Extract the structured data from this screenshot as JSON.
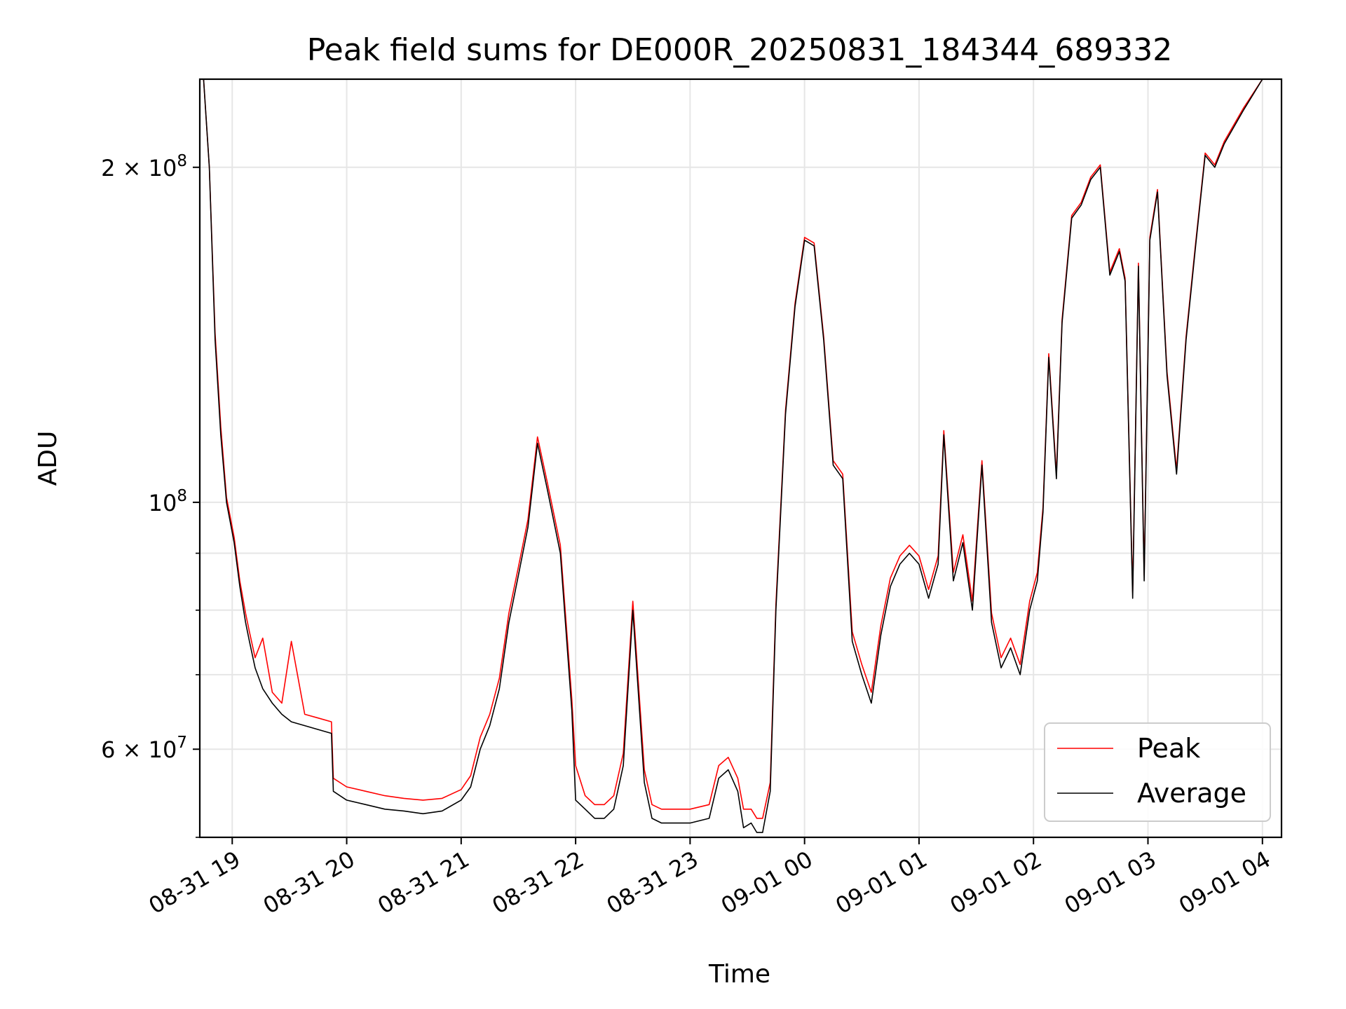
{
  "chart_data": {
    "type": "line",
    "title": "Peak field sums for DE000R_20250831_184344_689332",
    "xlabel": "Time",
    "ylabel": "ADU",
    "y_scale": "log",
    "grid": true,
    "legend_position": "lower-right",
    "x_tick_labels": [
      "08-31 19",
      "08-31 20",
      "08-31 21",
      "08-31 22",
      "08-31 23",
      "09-01 00",
      "09-01 01",
      "09-01 02",
      "09-01 03",
      "09-01 04"
    ],
    "x_ticks": [
      "2025-08-31 19:00",
      "2025-08-31 20:00",
      "2025-08-31 21:00",
      "2025-08-31 22:00",
      "2025-08-31 23:00",
      "2025-09-01 00:00",
      "2025-09-01 01:00",
      "2025-09-01 02:00",
      "2025-09-01 03:00",
      "2025-09-01 04:00"
    ],
    "x_range": [
      "2025-08-31 18:43",
      "2025-09-01 04:10"
    ],
    "y_range": [
      50000000,
      240000000
    ],
    "y_major_ticks": [
      {
        "value": 60000000,
        "mantissa": "6",
        "exponent": "7"
      },
      {
        "value": 100000000,
        "mantissa": "",
        "exponent": "8"
      },
      {
        "value": 200000000,
        "mantissa": "2",
        "exponent": "8"
      }
    ],
    "y_minor_ticks": [
      50000000,
      70000000,
      80000000,
      90000000,
      300000000
    ],
    "series": [
      {
        "name": "Peak",
        "color": "#ff0000"
      },
      {
        "name": "Average",
        "color": "#000000"
      }
    ],
    "x": [
      "2025-08-31 18:45",
      "2025-08-31 18:48",
      "2025-08-31 18:51",
      "2025-08-31 18:54",
      "2025-08-31 18:57",
      "2025-08-31 19:01",
      "2025-08-31 19:04",
      "2025-08-31 19:07",
      "2025-08-31 19:09",
      "2025-08-31 19:12",
      "2025-08-31 19:16",
      "2025-08-31 19:21",
      "2025-08-31 19:26",
      "2025-08-31 19:31",
      "2025-08-31 19:38",
      "2025-08-31 19:45",
      "2025-08-31 19:52",
      "2025-08-31 19:53",
      "2025-08-31 20:00",
      "2025-08-31 20:10",
      "2025-08-31 20:20",
      "2025-08-31 20:30",
      "2025-08-31 20:40",
      "2025-08-31 20:50",
      "2025-08-31 21:00",
      "2025-08-31 21:05",
      "2025-08-31 21:10",
      "2025-08-31 21:15",
      "2025-08-31 21:20",
      "2025-08-31 21:25",
      "2025-08-31 21:30",
      "2025-08-31 21:35",
      "2025-08-31 21:40",
      "2025-08-31 21:45",
      "2025-08-31 21:52",
      "2025-08-31 21:58",
      "2025-08-31 22:00",
      "2025-08-31 22:05",
      "2025-08-31 22:10",
      "2025-08-31 22:15",
      "2025-08-31 22:20",
      "2025-08-31 22:25",
      "2025-08-31 22:30",
      "2025-08-31 22:36",
      "2025-08-31 22:40",
      "2025-08-31 22:45",
      "2025-08-31 22:50",
      "2025-08-31 23:00",
      "2025-08-31 23:10",
      "2025-08-31 23:15",
      "2025-08-31 23:20",
      "2025-08-31 23:25",
      "2025-08-31 23:28",
      "2025-08-31 23:32",
      "2025-08-31 23:35",
      "2025-08-31 23:38",
      "2025-08-31 23:42",
      "2025-08-31 23:45",
      "2025-08-31 23:50",
      "2025-08-31 23:55",
      "2025-09-01 00:00",
      "2025-09-01 00:05",
      "2025-09-01 00:10",
      "2025-09-01 00:15",
      "2025-09-01 00:20",
      "2025-09-01 00:25",
      "2025-09-01 00:30",
      "2025-09-01 00:35",
      "2025-09-01 00:40",
      "2025-09-01 00:45",
      "2025-09-01 00:50",
      "2025-09-01 00:55",
      "2025-09-01 01:00",
      "2025-09-01 01:05",
      "2025-09-01 01:10",
      "2025-09-01 01:13",
      "2025-09-01 01:18",
      "2025-09-01 01:23",
      "2025-09-01 01:28",
      "2025-09-01 01:33",
      "2025-09-01 01:38",
      "2025-09-01 01:43",
      "2025-09-01 01:48",
      "2025-09-01 01:53",
      "2025-09-01 01:58",
      "2025-09-01 02:02",
      "2025-09-01 02:05",
      "2025-09-01 02:08",
      "2025-09-01 02:12",
      "2025-09-01 02:15",
      "2025-09-01 02:20",
      "2025-09-01 02:25",
      "2025-09-01 02:30",
      "2025-09-01 02:35",
      "2025-09-01 02:40",
      "2025-09-01 02:45",
      "2025-09-01 02:48",
      "2025-09-01 02:52",
      "2025-09-01 02:55",
      "2025-09-01 02:58",
      "2025-09-01 03:01",
      "2025-09-01 03:05",
      "2025-09-01 03:10",
      "2025-09-01 03:15",
      "2025-09-01 03:20",
      "2025-09-01 03:25",
      "2025-09-01 03:30",
      "2025-09-01 03:35",
      "2025-09-01 03:40",
      "2025-09-01 03:50",
      "2025-09-01 04:00"
    ],
    "average_values": [
      240000000,
      200000000,
      140000000,
      115000000,
      100000000,
      92000000,
      84000000,
      78000000,
      75000000,
      71000000,
      68000000,
      66000000,
      64500000,
      63500000,
      63000000,
      62500000,
      62000000,
      55000000,
      54000000,
      53500000,
      53000000,
      52800000,
      52500000,
      52800000,
      54000000,
      55500000,
      60000000,
      63000000,
      68000000,
      78000000,
      86000000,
      95000000,
      113000000,
      103000000,
      90000000,
      65000000,
      54000000,
      53000000,
      52000000,
      52000000,
      53000000,
      58000000,
      80000000,
      56000000,
      52000000,
      51500000,
      51500000,
      51500000,
      52000000,
      56500000,
      57500000,
      55000000,
      51000000,
      51500000,
      50500000,
      50500000,
      55000000,
      80000000,
      120000000,
      150000000,
      172000000,
      170000000,
      140000000,
      108000000,
      105000000,
      75000000,
      70000000,
      66000000,
      76000000,
      84000000,
      88000000,
      90000000,
      88000000,
      82000000,
      88000000,
      115000000,
      85000000,
      92000000,
      80000000,
      108000000,
      78000000,
      71000000,
      74000000,
      70000000,
      80000000,
      85000000,
      98000000,
      135000000,
      105000000,
      145000000,
      180000000,
      185000000,
      195000000,
      200000000,
      160000000,
      168000000,
      158000000,
      82000000,
      163000000,
      85000000,
      172000000,
      190000000,
      130000000,
      106000000,
      140000000,
      170000000,
      205000000,
      200000000,
      210000000,
      225000000,
      240000000
    ],
    "peak_values": [
      240000000,
      200000000,
      142000000,
      117000000,
      101000000,
      93000000,
      85000000,
      79500000,
      76500000,
      72500000,
      75500000,
      67500000,
      66000000,
      75000000,
      64500000,
      64000000,
      63500000,
      56500000,
      55500000,
      55000000,
      54500000,
      54200000,
      54000000,
      54200000,
      55200000,
      56800000,
      61500000,
      64500000,
      69500000,
      79500000,
      87500000,
      96500000,
      114500000,
      104500000,
      91500000,
      66500000,
      58000000,
      54500000,
      53500000,
      53500000,
      54500000,
      59500000,
      81500000,
      57500000,
      53500000,
      53000000,
      53000000,
      53000000,
      53500000,
      58000000,
      59000000,
      56500000,
      53000000,
      53000000,
      52000000,
      52000000,
      56000000,
      81000000,
      121000000,
      151000000,
      173000000,
      171000000,
      141000000,
      109000000,
      106000000,
      76500000,
      71500000,
      67500000,
      77500000,
      85500000,
      89500000,
      91500000,
      89500000,
      83500000,
      89500000,
      116000000,
      86500000,
      93500000,
      81500000,
      109000000,
      79500000,
      72500000,
      75500000,
      71500000,
      81500000,
      86500000,
      99000000,
      136000000,
      106000000,
      146000000,
      181000000,
      186000000,
      196000000,
      201000000,
      161000000,
      169000000,
      159000000,
      83000000,
      164000000,
      86000000,
      173000000,
      191000000,
      131000000,
      107000000,
      141000000,
      171000000,
      206000000,
      201000000,
      211000000,
      226000000,
      240000000
    ]
  }
}
